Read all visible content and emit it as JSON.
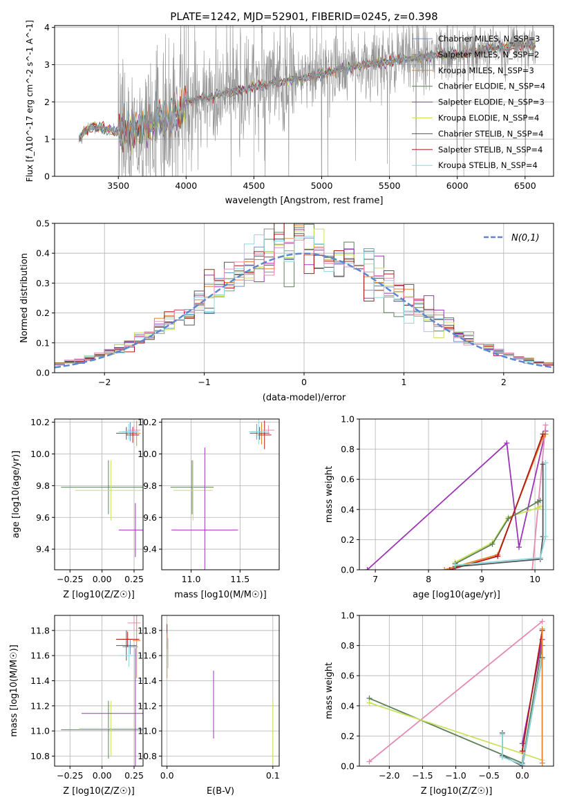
{
  "colors": {
    "chabrier_miles": "#6f8fcf",
    "salpeter_miles": "#8f8f8f",
    "kroupa_miles": "#e8822c",
    "chabrier_elodie": "#5c7f5c",
    "salpeter_elodie": "#9b35b5",
    "kroupa_elodie": "#c9e25a",
    "chabrier_stelib": "#555555",
    "salpeter_stelib": "#b01818",
    "kroupa_stelib": "#8ed6e0",
    "extra_pink": "#e58ab5",
    "gaussian": "#5b86d6"
  },
  "chart_data": [
    {
      "id": "spectrum",
      "type": "line",
      "title": "PLATE=1242, MJD=52901, FIBERID=0245, z=0.398",
      "xlabel": "wavelength [Angstrom, rest frame]",
      "ylabel": "Flux [f_λ10^-17 erg cm^-2 s^-1 A^-1]",
      "xlim": [
        3030,
        6710
      ],
      "ylim": [
        0,
        4.05
      ],
      "xticks": [
        3500,
        4000,
        4500,
        5000,
        5500,
        6000,
        6500
      ],
      "yticks": [
        0,
        1,
        2,
        3,
        4
      ],
      "legend_position": "upper-right",
      "legend": [
        {
          "label": "Chabrier MILES, N_SSP=3",
          "color": "#6f8fcf"
        },
        {
          "label": "Salpeter MILES, N_SSP=2",
          "color": "#8f8f8f"
        },
        {
          "label": "Kroupa MILES, N_SSP=3",
          "color": "#e8822c"
        },
        {
          "label": "Chabrier ELODIE, N_SSP=4",
          "color": "#5c7f5c"
        },
        {
          "label": "Salpeter ELODIE, N_SSP=3",
          "color": "#9b35b5"
        },
        {
          "label": "Kroupa ELODIE, N_SSP=4",
          "color": "#c9e25a"
        },
        {
          "label": "Chabrier STELIB, N_SSP=4",
          "color": "#555555"
        },
        {
          "label": "Salpeter STELIB, N_SSP=4",
          "color": "#b01818"
        },
        {
          "label": "Kroupa STELIB, N_SSP=4",
          "color": "#8ed6e0"
        }
      ],
      "model_trend": [
        [
          3210,
          1.0
        ],
        [
          3300,
          1.35
        ],
        [
          3500,
          1.2
        ],
        [
          3700,
          1.3
        ],
        [
          3950,
          1.7
        ],
        [
          4000,
          2.0
        ],
        [
          4200,
          2.15
        ],
        [
          4500,
          2.4
        ],
        [
          4800,
          2.6
        ],
        [
          5000,
          2.75
        ],
        [
          5300,
          3.0
        ],
        [
          5600,
          3.15
        ],
        [
          6000,
          3.3
        ],
        [
          6300,
          3.45
        ],
        [
          6580,
          3.55
        ]
      ]
    },
    {
      "id": "residuals",
      "type": "histogram",
      "xlabel": "(data-model)/error",
      "ylabel": "Normed distribution",
      "xlim": [
        -2.5,
        2.5
      ],
      "ylim": [
        0,
        0.5
      ],
      "xticks": [
        -2,
        -1,
        0,
        1,
        2
      ],
      "yticks": [
        0.0,
        0.1,
        0.2,
        0.3,
        0.4,
        0.5
      ],
      "bin_width": 0.1,
      "legend": [
        {
          "label": "N(0,1)",
          "color": "#5b86d6",
          "style": "dashed"
        }
      ],
      "legend_position": "upper-right",
      "histogram_colors": [
        "#6f8fcf",
        "#8f8f8f",
        "#e8822c",
        "#5c7f5c",
        "#9b35b5",
        "#c9e25a",
        "#555555",
        "#b01818",
        "#8ed6e0",
        "#e58ab5"
      ]
    },
    {
      "id": "age_vs_z",
      "type": "errorbar",
      "xlabel": "Z [log10(Z/Z☉)]",
      "ylabel": "age  [log10(age/yr)]",
      "xlim": [
        -0.37,
        0.32
      ],
      "ylim": [
        9.27,
        10.22
      ],
      "xticks": [
        -0.25,
        0.0,
        0.25
      ],
      "yticks": [
        9.4,
        9.6,
        9.8,
        10.0,
        10.2
      ],
      "points": [
        {
          "color": "#6f8fcf",
          "x": 0.22,
          "y": 10.14,
          "xerr": 0.06,
          "yerr": 0.06
        },
        {
          "color": "#e8822c",
          "x": 0.27,
          "y": 10.13,
          "xerr": 0.03,
          "yerr": 0.08
        },
        {
          "color": "#555555",
          "x": 0.19,
          "y": 10.13,
          "xerr": 0.08,
          "yerr": 0.04
        },
        {
          "color": "#b01818",
          "x": 0.24,
          "y": 10.12,
          "xerr": 0.05,
          "yerr": 0.05
        },
        {
          "color": "#e58ab5",
          "x": 0.25,
          "y": 10.15,
          "xerr": 0.05,
          "yerr": 0.03
        },
        {
          "color": "#8ed6e0",
          "x": 0.21,
          "y": 10.14,
          "xerr": 0.08,
          "yerr": 0.05
        },
        {
          "color": "#5c7f5c",
          "x": 0.05,
          "y": 9.79,
          "xerr": 0.37,
          "yerr": 0.17
        },
        {
          "color": "#c9e25a",
          "x": 0.07,
          "y": 9.77,
          "xerr": 0.28,
          "yerr": 0.19
        },
        {
          "color": "#9b35b5",
          "x": 0.26,
          "y": 9.52,
          "xerr": 0.13,
          "yerr": 0.17
        }
      ]
    },
    {
      "id": "age_vs_mass",
      "type": "errorbar",
      "xlabel": "mass [log10(M/M☉)]",
      "ylabel": "",
      "xlim": [
        10.7,
        11.9
      ],
      "ylim": [
        9.27,
        10.22
      ],
      "xticks": [
        11.0,
        11.5
      ],
      "yticks": [
        9.4,
        9.6,
        9.8,
        10.0,
        10.2
      ],
      "points": [
        {
          "color": "#6f8fcf",
          "x": 11.67,
          "y": 10.14,
          "xerr": 0.06,
          "yerr": 0.05
        },
        {
          "color": "#e8822c",
          "x": 11.72,
          "y": 10.13,
          "xerr": 0.03,
          "yerr": 0.07
        },
        {
          "color": "#555555",
          "x": 11.7,
          "y": 10.13,
          "xerr": 0.1,
          "yerr": 0.04
        },
        {
          "color": "#b01818",
          "x": 11.75,
          "y": 10.12,
          "xerr": 0.07,
          "yerr": 0.09
        },
        {
          "color": "#e58ab5",
          "x": 11.79,
          "y": 10.15,
          "xerr": 0.06,
          "yerr": 0.03
        },
        {
          "color": "#8ed6e0",
          "x": 11.69,
          "y": 10.14,
          "xerr": 0.1,
          "yerr": 0.08
        },
        {
          "color": "#5c7f5c",
          "x": 11.01,
          "y": 9.79,
          "xerr": 0.22,
          "yerr": 0.17
        },
        {
          "color": "#c9e25a",
          "x": 11.02,
          "y": 9.77,
          "xerr": 0.2,
          "yerr": 0.19
        },
        {
          "color": "#9b35b5",
          "x": 11.14,
          "y": 9.52,
          "xerr": 0.34,
          "yerr": 0.52
        }
      ]
    },
    {
      "id": "weight_vs_age",
      "type": "line",
      "xlabel": "age  [log10(age/yr)]",
      "ylabel": "mass weight",
      "xlim": [
        6.7,
        10.35
      ],
      "ylim": [
        0,
        1.0
      ],
      "xticks": [
        7,
        8,
        9,
        10
      ],
      "yticks": [
        0.0,
        0.2,
        0.4,
        0.6,
        0.8,
        1.0
      ],
      "series": [
        {
          "color": "#9b35b5",
          "x": [
            6.85,
            9.47,
            9.7,
            10.2
          ],
          "y": [
            0.0,
            0.84,
            0.15,
            0.92
          ]
        },
        {
          "color": "#e58ab5",
          "x": [
            9.95,
            10.2
          ],
          "y": [
            0.0,
            0.96
          ]
        },
        {
          "color": "#c9e25a",
          "x": [
            8.5,
            9.2,
            9.5,
            10.05,
            10.1
          ],
          "y": [
            0.05,
            0.18,
            0.35,
            0.41,
            0.42
          ]
        },
        {
          "color": "#5c7f5c",
          "x": [
            8.5,
            9.2,
            9.5,
            10.05,
            10.1
          ],
          "y": [
            0.04,
            0.17,
            0.34,
            0.45,
            0.46
          ]
        },
        {
          "color": "#e8822c",
          "x": [
            8.3,
            9.3,
            10.15,
            10.2
          ],
          "y": [
            0.0,
            0.1,
            0.88,
            0.9
          ]
        },
        {
          "color": "#b01818",
          "x": [
            8.4,
            9.3,
            10.15
          ],
          "y": [
            0.0,
            0.09,
            0.9
          ]
        },
        {
          "color": "#555555",
          "x": [
            8.5,
            10.1,
            10.15,
            10.15
          ],
          "y": [
            0.02,
            0.07,
            0.22,
            0.7
          ]
        },
        {
          "color": "#8ed6e0",
          "x": [
            8.5,
            10.1,
            10.2,
            10.2
          ],
          "y": [
            0.03,
            0.08,
            0.22,
            0.71
          ]
        }
      ]
    },
    {
      "id": "mass_vs_z",
      "type": "errorbar",
      "xlabel": "Z [log10(Z/Z☉)]",
      "ylabel": "mass [log10(M/M☉)]",
      "xlim": [
        -0.37,
        0.32
      ],
      "ylim": [
        10.72,
        11.92
      ],
      "xticks": [
        -0.25,
        0.0,
        0.25
      ],
      "yticks": [
        10.8,
        11.0,
        11.2,
        11.4,
        11.6,
        11.8
      ],
      "points": [
        {
          "color": "#6f8fcf",
          "x": 0.22,
          "y": 11.67,
          "xerr": 0.06,
          "yerr": 0.06
        },
        {
          "color": "#e8822c",
          "x": 0.27,
          "y": 11.72,
          "xerr": 0.03,
          "yerr": 0.3
        },
        {
          "color": "#555555",
          "x": 0.19,
          "y": 11.68,
          "xerr": 0.08,
          "yerr": 0.12
        },
        {
          "color": "#b01818",
          "x": 0.2,
          "y": 11.73,
          "xerr": 0.09,
          "yerr": 0.06
        },
        {
          "color": "#e58ab5",
          "x": 0.25,
          "y": 11.86,
          "xerr": 0.05,
          "yerr": 0.06
        },
        {
          "color": "#8ed6e0",
          "x": 0.21,
          "y": 11.6,
          "xerr": 0.08,
          "yerr": 0.09
        },
        {
          "color": "#5c7f5c",
          "x": 0.05,
          "y": 11.01,
          "xerr": 0.37,
          "yerr": 0.23
        },
        {
          "color": "#c9e25a",
          "x": 0.07,
          "y": 11.02,
          "xerr": 0.25,
          "yerr": 0.22
        },
        {
          "color": "#9b35b5",
          "x": 0.26,
          "y": 11.14,
          "xerr": 0.42,
          "yerr": 0.52
        }
      ]
    },
    {
      "id": "mass_vs_ebv",
      "type": "errorbar",
      "xlabel": "E(B-V)",
      "ylabel": "",
      "xlim": [
        -0.005,
        0.106
      ],
      "ylim": [
        10.72,
        11.92
      ],
      "xticks": [
        0.0,
        0.1
      ],
      "yticks": [
        10.8,
        11.0,
        11.2,
        11.4,
        11.6,
        11.8
      ],
      "points": [
        {
          "color": "#b01818",
          "x": 0.0,
          "y": 11.75,
          "xerr": 0,
          "yerr": 0.1
        },
        {
          "color": "#e8822c",
          "x": 0.0,
          "y": 11.6,
          "xerr": 0,
          "yerr": 0.18
        },
        {
          "color": "#8ed6e0",
          "x": 0.001,
          "y": 11.62,
          "xerr": 0,
          "yerr": 0.12
        },
        {
          "color": "#9b35b5",
          "x": 0.044,
          "y": 11.21,
          "xerr": 0,
          "yerr": 0.27
        },
        {
          "color": "#c9e25a",
          "x": 0.1,
          "y": 10.98,
          "xerr": 0,
          "yerr": 0.25
        }
      ]
    },
    {
      "id": "weight_vs_z",
      "type": "line",
      "xlabel": "Z [log10(Z/Z☉)]",
      "ylabel": "mass weight",
      "xlim": [
        -2.45,
        0.47
      ],
      "ylim": [
        0,
        1.0
      ],
      "xticks": [
        -2.0,
        -1.5,
        -1.0,
        -0.5,
        0.0
      ],
      "yticks": [
        0.0,
        0.2,
        0.4,
        0.6,
        0.8,
        1.0
      ],
      "series": [
        {
          "color": "#e58ab5",
          "x": [
            -2.3,
            0.3
          ],
          "y": [
            0.03,
            0.96
          ]
        },
        {
          "color": "#5c7f5c",
          "x": [
            -2.3,
            0.0,
            0.3
          ],
          "y": [
            0.45,
            0.02,
            0.8
          ]
        },
        {
          "color": "#c9e25a",
          "x": [
            -2.3,
            0.3,
            0.3
          ],
          "y": [
            0.42,
            0.04,
            0.9
          ]
        },
        {
          "color": "#555555",
          "x": [
            -0.3,
            -0.3,
            0.0,
            0.3
          ],
          "y": [
            0.22,
            0.07,
            0.0,
            0.72
          ]
        },
        {
          "color": "#8ed6e0",
          "x": [
            -0.3,
            -0.3,
            0.0,
            0.3
          ],
          "y": [
            0.21,
            0.06,
            0.01,
            0.71
          ]
        },
        {
          "color": "#9b35b5",
          "x": [
            0.0,
            0.3
          ],
          "y": [
            0.15,
            0.84
          ]
        },
        {
          "color": "#b01818",
          "x": [
            0.0,
            0.3
          ],
          "y": [
            0.1,
            0.9
          ]
        },
        {
          "color": "#e8822c",
          "x": [
            0.3,
            0.3
          ],
          "y": [
            0.02,
            0.91
          ]
        }
      ]
    }
  ]
}
